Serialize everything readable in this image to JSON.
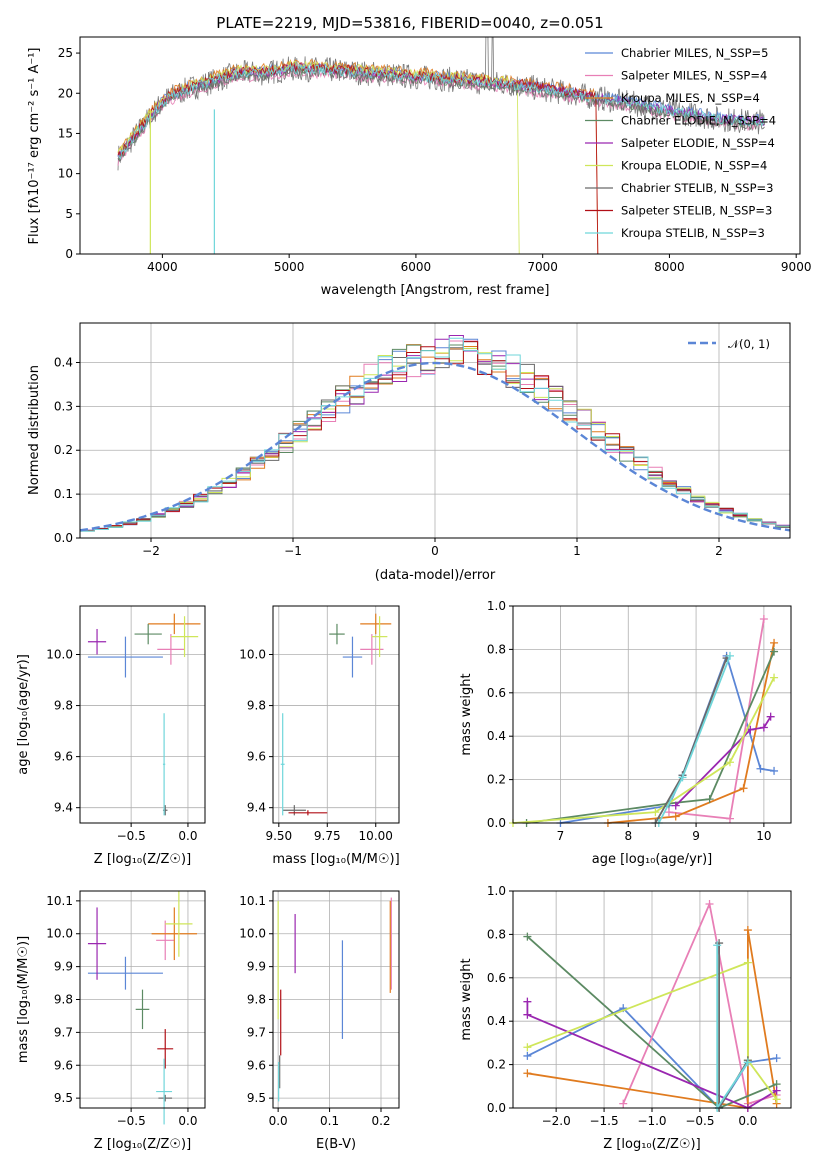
{
  "colors": {
    "Chabrier MILES": "#5b86d6",
    "Salpeter MILES": "#e87fb6",
    "Kroupa MILES": "#e07b1f",
    "Chabrier ELODIE": "#5c8a63",
    "Salpeter ELODIE": "#9a27b0",
    "Kroupa ELODIE": "#cfe65a",
    "Chabrier STELIB": "#6a6a6a",
    "Salpeter STELIB": "#b10f16",
    "Kroupa STELIB": "#6fd6da",
    "normal": "#5b86d6",
    "grid": "#b0b0b0"
  },
  "chart_data": [
    {
      "type": "line",
      "title": "PLATE=2219, MJD=53816, FIBERID=0040, z=0.051",
      "xlabel": "wavelength [Angstrom, rest frame]",
      "ylabel": "Flux [fλ10⁻¹⁷ erg cm⁻² s⁻¹ A⁻¹]",
      "xlim": [
        3350,
        9030
      ],
      "ylim": [
        0,
        27
      ],
      "xticks": [
        "4000",
        "5000",
        "6000",
        "7000",
        "8000",
        "9000"
      ],
      "yticks": [
        "0",
        "5",
        "10",
        "15",
        "20",
        "25"
      ],
      "legend_location": "top-right",
      "grid": false,
      "series": [
        {
          "name": "Chabrier MILES, N_SSP=5"
        },
        {
          "name": "Salpeter MILES, N_SSP=4"
        },
        {
          "name": "Kroupa MILES, N_SSP=4"
        },
        {
          "name": "Chabrier ELODIE, N_SSP=4"
        },
        {
          "name": "Salpeter ELODIE, N_SSP=4"
        },
        {
          "name": "Kroupa ELODIE, N_SSP=4"
        },
        {
          "name": "Chabrier STELIB, N_SSP=3"
        },
        {
          "name": "Salpeter STELIB, N_SSP=3"
        },
        {
          "name": "Kroupa STELIB, N_SSP=3"
        }
      ],
      "continuum": {
        "x": [
          3650,
          3750,
          3850,
          3950,
          4050,
          4200,
          4400,
          4600,
          4800,
          5000,
          5200,
          5400,
          5600,
          5800,
          6000,
          6200,
          6400,
          6600,
          6800,
          7000,
          7200,
          7400,
          7600,
          7800,
          8000,
          8200,
          8400,
          8600,
          8750
        ],
        "y": [
          12,
          14,
          16,
          18,
          19.5,
          20.5,
          21.5,
          22.5,
          22.5,
          23,
          23,
          22.8,
          22.5,
          22.3,
          22,
          21.8,
          21.5,
          21.3,
          21,
          20.5,
          20,
          19.5,
          19,
          18.5,
          17.8,
          17.3,
          16.8,
          16.5,
          16.5
        ]
      }
    },
    {
      "type": "line",
      "xlabel": "(data-model)/error",
      "ylabel": "Normed distribution",
      "xlim": [
        -2.5,
        2.5
      ],
      "ylim": [
        0,
        0.49
      ],
      "xticks": [
        "−2",
        "−1",
        "0",
        "1",
        "2"
      ],
      "yticks": [
        "0.0",
        "0.1",
        "0.2",
        "0.3",
        "0.4"
      ],
      "grid": true,
      "legend": "𝒩(0, 1)",
      "legend_location": "top-right"
    },
    {
      "type": "scatter",
      "xlabel": "Z [log₁₀(Z/Z☉)]",
      "ylabel": "age  [log₁₀(age/yr)]",
      "xlim": [
        -0.95,
        0.15
      ],
      "ylim": [
        9.34,
        10.19
      ],
      "xticks": [
        "−0.5",
        "0.0"
      ],
      "yticks": [
        "9.4",
        "9.6",
        "9.8",
        "10.0"
      ],
      "points": [
        {
          "series": "Chabrier MILES",
          "x": -0.55,
          "y": 9.99,
          "xerr": 0.33,
          "yerr": 0.08
        },
        {
          "series": "Salpeter MILES",
          "x": -0.15,
          "y": 10.02,
          "xerr": 0.12,
          "yerr": 0.06
        },
        {
          "series": "Kroupa MILES",
          "x": -0.12,
          "y": 10.12,
          "xerr": 0.23,
          "yerr": 0.04
        },
        {
          "series": "Chabrier ELODIE",
          "x": -0.35,
          "y": 10.08,
          "xerr": 0.12,
          "yerr": 0.04
        },
        {
          "series": "Salpeter ELODIE",
          "x": -0.8,
          "y": 10.05,
          "xerr": 0.08,
          "yerr": 0.05
        },
        {
          "series": "Kroupa ELODIE",
          "x": -0.03,
          "y": 10.07,
          "xerr": 0.12,
          "yerr": 0.08
        },
        {
          "series": "Chabrier STELIB",
          "x": -0.2,
          "y": 9.39,
          "xerr": 0.02,
          "yerr": 0.02
        },
        {
          "series": "Kroupa STELIB",
          "x": -0.21,
          "y": 9.57,
          "xerr": 0.01,
          "yerr": 0.2
        }
      ]
    },
    {
      "type": "scatter",
      "xlabel": "mass [log₁₀(M/M☉)]",
      "xlim": [
        9.47,
        10.12
      ],
      "ylim": [
        9.34,
        10.19
      ],
      "xticks": [
        "9.50",
        "9.75",
        "10.00"
      ],
      "yticks": [
        "9.4",
        "9.6",
        "9.8",
        "10.0"
      ],
      "points": [
        {
          "series": "Chabrier MILES",
          "x": 9.88,
          "y": 9.99,
          "xerr": 0.05,
          "yerr": 0.08
        },
        {
          "series": "Salpeter MILES",
          "x": 9.98,
          "y": 10.02,
          "xerr": 0.06,
          "yerr": 0.06
        },
        {
          "series": "Kroupa MILES",
          "x": 10.0,
          "y": 10.12,
          "xerr": 0.08,
          "yerr": 0.04
        },
        {
          "series": "Chabrier ELODIE",
          "x": 9.8,
          "y": 10.08,
          "xerr": 0.04,
          "yerr": 0.04
        },
        {
          "series": "Kroupa ELODIE",
          "x": 10.02,
          "y": 10.07,
          "xerr": 0.04,
          "yerr": 0.08
        },
        {
          "series": "Chabrier STELIB",
          "x": 9.58,
          "y": 9.39,
          "xerr": 0.06,
          "yerr": 0.02
        },
        {
          "series": "Salpeter STELIB",
          "x": 9.65,
          "y": 9.38,
          "xerr": 0.1,
          "yerr": 0.01
        },
        {
          "series": "Kroupa STELIB",
          "x": 9.52,
          "y": 9.57,
          "xerr": 0.01,
          "yerr": 0.2
        }
      ]
    },
    {
      "type": "line",
      "xlabel": "age  [log₁₀(age/yr)]",
      "ylabel": "mass weight",
      "xlim": [
        6.3,
        10.4
      ],
      "ylim": [
        0,
        1.0
      ],
      "xticks": [
        "7",
        "8",
        "9",
        "10"
      ],
      "yticks": [
        "0.0",
        "0.2",
        "0.4",
        "0.6",
        "0.8",
        "1.0"
      ],
      "grid": true,
      "series": [
        {
          "color": "Chabrier MILES",
          "x": [
            7.0,
            8.6,
            8.8,
            9.45,
            9.95,
            10.15
          ],
          "y": [
            0.0,
            0.08,
            0.22,
            0.77,
            0.25,
            0.24
          ]
        },
        {
          "color": "Salpeter MILES",
          "x": [
            8.6,
            9.5,
            10.0
          ],
          "y": [
            0.05,
            0.02,
            0.94
          ]
        },
        {
          "color": "Kroupa MILES",
          "x": [
            7.7,
            8.7,
            9.7,
            10.15
          ],
          "y": [
            0.0,
            0.03,
            0.16,
            0.83
          ]
        },
        {
          "color": "Chabrier ELODIE",
          "x": [
            6.5,
            8.6,
            9.2,
            10.15
          ],
          "y": [
            0.0,
            0.09,
            0.11,
            0.79
          ]
        },
        {
          "color": "Salpeter ELODIE",
          "x": [
            8.7,
            9.8,
            10.0,
            10.1
          ],
          "y": [
            0.08,
            0.43,
            0.44,
            0.49
          ]
        },
        {
          "color": "Kroupa ELODIE",
          "x": [
            6.3,
            8.4,
            9.5,
            10.15
          ],
          "y": [
            0.0,
            0.05,
            0.28,
            0.67
          ]
        },
        {
          "color": "Chabrier STELIB",
          "x": [
            8.4,
            8.8,
            9.45
          ],
          "y": [
            0.0,
            0.22,
            0.76
          ]
        },
        {
          "color": "Kroupa STELIB",
          "x": [
            8.45,
            8.8,
            9.5
          ],
          "y": [
            0.0,
            0.21,
            0.77
          ]
        }
      ]
    },
    {
      "type": "scatter",
      "xlabel": "Z [log₁₀(Z/Z☉)]",
      "ylabel": "mass [log₁₀(M/M☉)]",
      "xlim": [
        -0.95,
        0.15
      ],
      "ylim": [
        9.47,
        10.13
      ],
      "xticks": [
        "−0.5",
        "0.0"
      ],
      "yticks": [
        "9.5",
        "9.6",
        "9.7",
        "9.8",
        "9.9",
        "10.0",
        "10.1"
      ],
      "points": [
        {
          "series": "Chabrier MILES",
          "x": -0.55,
          "y": 9.88,
          "xerr": 0.33,
          "yerr": 0.05
        },
        {
          "series": "Salpeter MILES",
          "x": -0.2,
          "y": 9.98,
          "xerr": 0.08,
          "yerr": 0.06
        },
        {
          "series": "Kroupa MILES",
          "x": -0.12,
          "y": 10.0,
          "xerr": 0.2,
          "yerr": 0.08
        },
        {
          "series": "Chabrier ELODIE",
          "x": -0.4,
          "y": 9.77,
          "xerr": 0.06,
          "yerr": 0.06
        },
        {
          "series": "Salpeter ELODIE",
          "x": -0.8,
          "y": 9.97,
          "xerr": 0.08,
          "yerr": 0.11
        },
        {
          "series": "Kroupa ELODIE",
          "x": -0.08,
          "y": 10.03,
          "xerr": 0.12,
          "yerr": 0.1
        },
        {
          "series": "Chabrier STELIB",
          "x": -0.2,
          "y": 9.5,
          "xerr": 0.06,
          "yerr": 0.01
        },
        {
          "series": "Salpeter STELIB",
          "x": -0.2,
          "y": 9.65,
          "xerr": 0.07,
          "yerr": 0.06
        },
        {
          "series": "Kroupa STELIB",
          "x": -0.21,
          "y": 9.52,
          "xerr": 0.07,
          "yerr": 0.1
        }
      ]
    },
    {
      "type": "scatter",
      "xlabel": "E(B-V)",
      "xlim": [
        -0.01,
        0.235
      ],
      "ylim": [
        9.47,
        10.13
      ],
      "xticks": [
        "0.0",
        "0.1",
        "0.2"
      ],
      "yticks": [
        "9.5",
        "9.6",
        "9.7",
        "9.8",
        "9.9",
        "10.0",
        "10.1"
      ],
      "points": [
        {
          "series": "Chabrier MILES",
          "x": 0.125,
          "y": 9.83,
          "xerr": 0,
          "yerr": 0.15
        },
        {
          "series": "Salpeter MILES",
          "x": 0.22,
          "y": 9.97,
          "xerr": 0,
          "yerr": 0.14
        },
        {
          "series": "Kroupa MILES",
          "x": 0.218,
          "y": 9.96,
          "xerr": 0,
          "yerr": 0.14
        },
        {
          "series": "Salpeter ELODIE",
          "x": 0.033,
          "y": 9.97,
          "xerr": 0,
          "yerr": 0.09
        },
        {
          "series": "Kroupa ELODIE",
          "x": 0.0,
          "y": 9.92,
          "xerr": 0,
          "yerr": 0.18
        },
        {
          "series": "Salpeter STELIB",
          "x": 0.005,
          "y": 9.73,
          "xerr": 0,
          "yerr": 0.1
        },
        {
          "series": "Chabrier STELIB",
          "x": 0.003,
          "y": 9.58,
          "xerr": 0,
          "yerr": 0.05
        },
        {
          "series": "Kroupa STELIB",
          "x": 0.001,
          "y": 9.55,
          "xerr": 0,
          "yerr": 0.06
        }
      ]
    },
    {
      "type": "line",
      "xlabel": "Z [log₁₀(Z/Z☉)]",
      "ylabel": "mass weight",
      "xlim": [
        -2.45,
        0.45
      ],
      "ylim": [
        0,
        1.0
      ],
      "xticks": [
        "−2.0",
        "−1.5",
        "−1.0",
        "−0.5",
        "0.0"
      ],
      "yticks": [
        "0.0",
        "0.2",
        "0.4",
        "0.6",
        "0.8",
        "1.0"
      ],
      "grid": true,
      "series": [
        {
          "color": "Chabrier MILES",
          "x": [
            -2.3,
            -1.3,
            -0.3,
            0.0,
            0.3
          ],
          "y": [
            0.24,
            0.46,
            0.0,
            0.21,
            0.23
          ]
        },
        {
          "color": "Salpeter MILES",
          "x": [
            -1.3,
            -0.4,
            0.0,
            0.3
          ],
          "y": [
            0.02,
            0.94,
            0.02,
            0.06
          ]
        },
        {
          "color": "Kroupa MILES",
          "x": [
            -2.3,
            0.0,
            0.0,
            0.3
          ],
          "y": [
            0.16,
            0.0,
            0.82,
            0.02
          ]
        },
        {
          "color": "Chabrier ELODIE",
          "x": [
            -2.3,
            -0.3,
            0.3
          ],
          "y": [
            0.79,
            0.0,
            0.11
          ]
        },
        {
          "color": "Salpeter ELODIE",
          "x": [
            -2.3,
            -2.3,
            0.0,
            0.3
          ],
          "y": [
            0.49,
            0.43,
            0.0,
            0.08
          ]
        },
        {
          "color": "Kroupa ELODIE",
          "x": [
            -2.3,
            0.0,
            0.0,
            0.3
          ],
          "y": [
            0.28,
            0.67,
            0.22,
            0.04
          ]
        },
        {
          "color": "Chabrier STELIB",
          "x": [
            -0.3,
            -0.3,
            0.0
          ],
          "y": [
            0.76,
            0.0,
            0.22
          ]
        },
        {
          "color": "Kroupa STELIB",
          "x": [
            -0.32,
            -0.32,
            0.0
          ],
          "y": [
            0.75,
            0.0,
            0.21
          ]
        }
      ]
    }
  ]
}
